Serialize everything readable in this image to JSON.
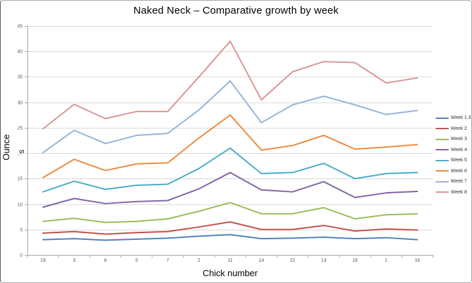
{
  "chart_data": {
    "type": "line",
    "title": "Naked Neck – Comparative growth by week",
    "xlabel": "Chick number",
    "ylabel": "Ounces",
    "ylabel_lines": [
      "Ounce",
      "s"
    ],
    "categories": [
      "19",
      "3",
      "8",
      "5",
      "7",
      "2",
      "11",
      "14",
      "22",
      "13",
      "18",
      "1",
      "16"
    ],
    "ylim": [
      0,
      45
    ],
    "yticks": [
      0,
      5,
      10,
      15,
      20,
      25,
      30,
      35,
      40,
      45
    ],
    "grid": "horizontal",
    "legend_position": "right",
    "series": [
      {
        "name": "Week 1.3",
        "color": "#4F81BD",
        "values": [
          3.0,
          3.2,
          2.9,
          3.1,
          3.3,
          3.7,
          4.0,
          3.2,
          3.3,
          3.5,
          3.2,
          3.4,
          3.0
        ]
      },
      {
        "name": "Week 2",
        "color": "#C0504D",
        "values": [
          4.3,
          4.6,
          4.1,
          4.4,
          4.6,
          5.5,
          6.5,
          5.0,
          5.0,
          5.8,
          4.7,
          5.1,
          4.9
        ]
      },
      {
        "name": "Week 3",
        "color": "#9BBB59",
        "values": [
          6.6,
          7.2,
          6.4,
          6.6,
          7.1,
          8.6,
          10.3,
          8.1,
          8.1,
          9.3,
          7.1,
          7.9,
          8.1
        ]
      },
      {
        "name": "Week 4",
        "color": "#8064A2",
        "values": [
          9.4,
          11.1,
          10.1,
          10.5,
          10.7,
          13.0,
          16.2,
          12.8,
          12.4,
          14.4,
          11.3,
          12.2,
          12.5
        ]
      },
      {
        "name": "Week 5",
        "color": "#4BACC6",
        "values": [
          12.4,
          14.5,
          12.9,
          13.7,
          13.9,
          17.0,
          21.0,
          16.0,
          16.2,
          18.0,
          15.0,
          16.0,
          16.2
        ]
      },
      {
        "name": "Week 6",
        "color": "#ED8A3F",
        "values": [
          15.2,
          18.8,
          16.6,
          17.9,
          18.1,
          23.0,
          27.5,
          20.6,
          21.5,
          23.5,
          20.8,
          21.2,
          21.7
        ]
      },
      {
        "name": "Week 7",
        "color": "#95B3D7",
        "values": [
          20.1,
          24.5,
          21.9,
          23.5,
          23.9,
          28.5,
          34.2,
          26.0,
          29.5,
          31.2,
          29.5,
          27.6,
          28.4
        ]
      },
      {
        "name": "Week 8",
        "color": "#D99694",
        "values": [
          24.8,
          29.6,
          26.8,
          28.2,
          28.2,
          35.0,
          42.0,
          30.5,
          36.0,
          38.0,
          37.8,
          33.8,
          34.8
        ]
      }
    ],
    "colors": {
      "gridline": "#D9D9D9",
      "axis": "#A6A6A6",
      "tick_label": "#595959"
    }
  }
}
